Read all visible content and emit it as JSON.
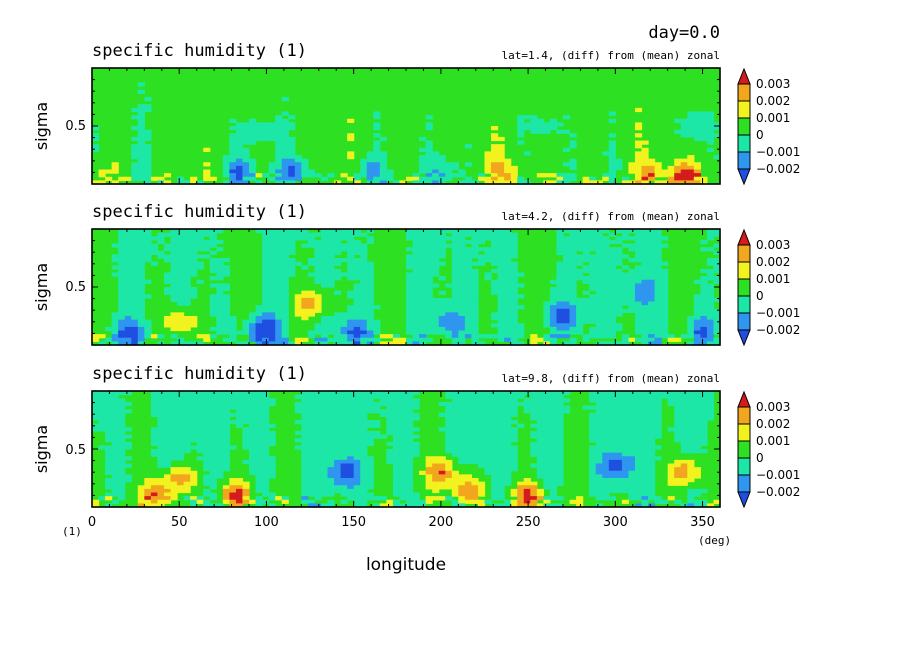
{
  "header": {
    "day_label": "day=0.0"
  },
  "colors": {
    "levels": [
      "#1f4fe0",
      "#2f96f0",
      "#1de7a7",
      "#2ee022",
      "#f2f21f",
      "#f2a61d",
      "#d51b1b"
    ],
    "frame": "#000000"
  },
  "x_axis": {
    "label": "longitude",
    "unit": "(deg)",
    "ticks": [
      "0",
      "50",
      "100",
      "150",
      "200",
      "250",
      "300",
      "350"
    ],
    "range": [
      0,
      360
    ]
  },
  "y_axis": {
    "label": "sigma",
    "unit": "(1)",
    "tick": "0.5",
    "range": [
      0,
      1
    ]
  },
  "colorbar": {
    "labels": [
      "0.003",
      "0.002",
      "0.001",
      "0",
      "−0.001",
      "−0.002"
    ]
  },
  "chart_data": [
    {
      "type": "heatmap",
      "title": "specific humidity (1)",
      "subtitle": "lat=1.4, (diff) from (mean) zonal",
      "xlabel": "longitude",
      "ylabel": "sigma",
      "xlim": [
        0,
        360
      ],
      "ylim": [
        0,
        1
      ],
      "levels": [
        -0.002,
        -0.001,
        0,
        0.001,
        0.002,
        0.003
      ],
      "grid": false,
      "anomalies": [
        {
          "lon": 0,
          "sigma": 0.08,
          "value": 0.0012
        },
        {
          "lon": 85,
          "sigma": 0.1,
          "value": -0.0025
        },
        {
          "lon": 95,
          "sigma": 0.45,
          "value": -0.0012
        },
        {
          "lon": 115,
          "sigma": 0.1,
          "value": -0.0023
        },
        {
          "lon": 160,
          "sigma": 0.12,
          "value": -0.0015
        },
        {
          "lon": 200,
          "sigma": 0.12,
          "value": -0.0012
        },
        {
          "lon": 235,
          "sigma": 0.1,
          "value": 0.0015
        },
        {
          "lon": 260,
          "sigma": 0.5,
          "value": -0.0008
        },
        {
          "lon": 320,
          "sigma": 0.1,
          "value": 0.0014
        },
        {
          "lon": 345,
          "sigma": 0.5,
          "value": -0.0013
        },
        {
          "lon": 340,
          "sigma": 0.06,
          "value": 0.0032
        }
      ]
    },
    {
      "type": "heatmap",
      "title": "specific humidity (1)",
      "subtitle": "lat=4.2, (diff) from (mean) zonal",
      "xlabel": "longitude",
      "ylabel": "sigma",
      "xlim": [
        0,
        360
      ],
      "ylim": [
        0,
        1
      ],
      "levels": [
        -0.002,
        -0.001,
        0,
        0.001,
        0.002,
        0.003
      ],
      "grid": false,
      "anomalies": [
        {
          "lon": 20,
          "sigma": 0.1,
          "value": -0.002
        },
        {
          "lon": 50,
          "sigma": 0.2,
          "value": 0.0023
        },
        {
          "lon": 95,
          "sigma": 0.15,
          "value": -0.0015
        },
        {
          "lon": 100,
          "sigma": 0.1,
          "value": -0.0023
        },
        {
          "lon": 125,
          "sigma": 0.35,
          "value": 0.0024
        },
        {
          "lon": 150,
          "sigma": 0.1,
          "value": -0.0024
        },
        {
          "lon": 205,
          "sigma": 0.2,
          "value": -0.0016
        },
        {
          "lon": 270,
          "sigma": 0.25,
          "value": -0.0025
        },
        {
          "lon": 315,
          "sigma": 0.45,
          "value": -0.0015
        },
        {
          "lon": 350,
          "sigma": 0.12,
          "value": -0.0022
        }
      ]
    },
    {
      "type": "heatmap",
      "title": "specific humidity (1)",
      "subtitle": "lat=9.8, (diff) from (mean) zonal",
      "xlabel": "longitude",
      "ylabel": "sigma",
      "xlim": [
        0,
        360
      ],
      "ylim": [
        0,
        1
      ],
      "levels": [
        -0.002,
        -0.001,
        0,
        0.001,
        0.002,
        0.003
      ],
      "grid": false,
      "anomalies": [
        {
          "lon": 50,
          "sigma": 0.25,
          "value": 0.0028
        },
        {
          "lon": 38,
          "sigma": 0.1,
          "value": 0.0032
        },
        {
          "lon": 82,
          "sigma": 0.1,
          "value": 0.0031
        },
        {
          "lon": 145,
          "sigma": 0.3,
          "value": -0.0025
        },
        {
          "lon": 200,
          "sigma": 0.3,
          "value": 0.0028
        },
        {
          "lon": 215,
          "sigma": 0.15,
          "value": 0.003
        },
        {
          "lon": 250,
          "sigma": 0.1,
          "value": 0.0031
        },
        {
          "lon": 300,
          "sigma": 0.35,
          "value": -0.0024
        },
        {
          "lon": 340,
          "sigma": 0.3,
          "value": 0.0029
        }
      ]
    }
  ]
}
